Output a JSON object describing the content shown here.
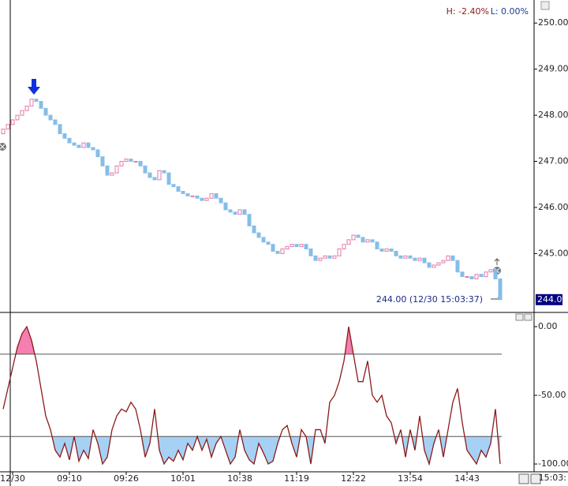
{
  "chart_data": [
    {
      "type": "candlestick",
      "high_label": "H: -2.40%",
      "low_label": "L: 0.00%",
      "categories": [
        null,
        null,
        "12/30",
        null,
        null,
        null,
        null,
        null,
        null,
        null,
        null,
        null,
        null,
        null,
        "09:10",
        null,
        null,
        null,
        null,
        null,
        null,
        null,
        null,
        null,
        null,
        null,
        "09:26",
        null,
        null,
        null,
        null,
        null,
        null,
        null,
        null,
        null,
        null,
        null,
        "10:01",
        null,
        null,
        null,
        null,
        null,
        null,
        null,
        null,
        null,
        null,
        null,
        "10:38",
        null,
        null,
        null,
        null,
        null,
        null,
        null,
        null,
        null,
        null,
        null,
        "11:19",
        null,
        null,
        null,
        null,
        null,
        null,
        null,
        null,
        null,
        null,
        null,
        "12:22",
        null,
        null,
        null,
        null,
        null,
        null,
        null,
        null,
        null,
        null,
        null,
        "13:54",
        null,
        null,
        null,
        null,
        null,
        null,
        null,
        null,
        null,
        null,
        null,
        "14:43",
        null,
        null,
        null,
        null,
        null,
        null,
        null
      ],
      "current_time_label": "15:03:",
      "open": [
        247.6,
        247.7,
        247.8,
        247.9,
        248.0,
        248.1,
        248.2,
        248.35,
        248.3,
        248.15,
        248.0,
        247.9,
        247.8,
        247.6,
        247.5,
        247.4,
        247.35,
        247.3,
        247.4,
        247.3,
        247.25,
        247.1,
        246.9,
        246.7,
        246.75,
        246.9,
        247.0,
        247.05,
        247.0,
        247.0,
        246.9,
        246.75,
        246.65,
        246.6,
        246.8,
        246.75,
        246.5,
        246.45,
        246.35,
        246.3,
        246.25,
        246.25,
        246.2,
        246.15,
        246.2,
        246.3,
        246.2,
        246.1,
        245.95,
        245.9,
        245.85,
        245.95,
        245.85,
        245.6,
        245.45,
        245.35,
        245.25,
        245.2,
        245.05,
        245.0,
        245.1,
        245.15,
        245.2,
        245.15,
        245.2,
        245.1,
        244.95,
        244.85,
        244.9,
        244.95,
        244.9,
        244.95,
        245.1,
        245.2,
        245.3,
        245.4,
        245.35,
        245.25,
        245.3,
        245.25,
        245.1,
        245.05,
        245.1,
        245.05,
        244.95,
        244.9,
        244.95,
        244.9,
        244.85,
        244.9,
        244.8,
        244.7,
        244.75,
        244.8,
        244.85,
        244.95,
        244.85,
        244.6,
        244.5,
        244.5,
        244.45,
        244.55,
        244.5,
        244.6,
        244.65,
        244.45
      ],
      "close": [
        247.7,
        247.8,
        247.9,
        248.0,
        248.1,
        248.2,
        248.35,
        248.3,
        248.15,
        248.0,
        247.9,
        247.8,
        247.6,
        247.5,
        247.4,
        247.35,
        247.3,
        247.4,
        247.3,
        247.25,
        247.1,
        246.9,
        246.7,
        246.75,
        246.9,
        247.0,
        247.05,
        247.0,
        247.0,
        246.9,
        246.75,
        246.65,
        246.6,
        246.8,
        246.75,
        246.5,
        246.45,
        246.35,
        246.3,
        246.25,
        246.25,
        246.2,
        246.15,
        246.2,
        246.3,
        246.2,
        246.1,
        245.95,
        245.9,
        245.85,
        245.95,
        245.85,
        245.6,
        245.45,
        245.35,
        245.25,
        245.2,
        245.05,
        245.0,
        245.1,
        245.15,
        245.2,
        245.15,
        245.2,
        245.1,
        244.95,
        244.85,
        244.9,
        244.95,
        244.9,
        244.95,
        245.1,
        245.2,
        245.3,
        245.4,
        245.35,
        245.25,
        245.3,
        245.25,
        245.1,
        245.05,
        245.1,
        245.05,
        244.95,
        244.9,
        244.95,
        244.9,
        244.85,
        244.9,
        244.8,
        244.7,
        244.75,
        244.8,
        244.85,
        244.95,
        244.85,
        244.6,
        244.5,
        244.5,
        244.45,
        244.55,
        244.5,
        244.6,
        244.65,
        244.45,
        244.0
      ],
      "up_color": "#e27aa8",
      "down_color": "#86bde8",
      "ylim": [
        243.74,
        250.5
      ],
      "yticks": [
        {
          "value": 250,
          "label": "250.00"
        },
        {
          "value": 249,
          "label": "249.00"
        },
        {
          "value": 248,
          "label": "248.00"
        },
        {
          "value": 247,
          "label": "247.00"
        },
        {
          "value": 246,
          "label": "246.00"
        },
        {
          "value": 245,
          "label": "245.00"
        }
      ],
      "last_price": {
        "value": 244,
        "label": "244.00"
      },
      "annotation": "244.00 (12/30 15:03:37)"
    },
    {
      "type": "line",
      "values": [
        -60,
        -45,
        -30,
        -15,
        -5,
        0,
        -10,
        -25,
        -45,
        -65,
        -75,
        -90,
        -95,
        -85,
        -97,
        -80,
        -98,
        -90,
        -96,
        -75,
        -85,
        -100,
        -95,
        -75,
        -65,
        -60,
        -62,
        -55,
        -60,
        -75,
        -95,
        -85,
        -60,
        -90,
        -100,
        -95,
        -98,
        -90,
        -97,
        -85,
        -90,
        -80,
        -90,
        -82,
        -95,
        -85,
        -80,
        -90,
        -100,
        -95,
        -75,
        -90,
        -97,
        -100,
        -85,
        -92,
        -100,
        -98,
        -85,
        -75,
        -72,
        -85,
        -95,
        -75,
        -80,
        -100,
        -75,
        -75,
        -85,
        -55,
        -50,
        -40,
        -25,
        0,
        -20,
        -40,
        -40,
        -25,
        -50,
        -55,
        -50,
        -65,
        -70,
        -85,
        -75,
        -95,
        -75,
        -90,
        -65,
        -90,
        -100,
        -85,
        -75,
        -95,
        -75,
        -55,
        -45,
        -70,
        -90,
        -95,
        -100,
        -90,
        -95,
        -85,
        -60,
        -100
      ],
      "color": "#8b1a1a",
      "levels": [
        -20,
        -80
      ],
      "upper_fill": "#f47fb0",
      "lower_fill": "#a6d1f5",
      "ylim": [
        -105.7,
        9.8
      ],
      "yticks": [
        {
          "value": 0,
          "label": "0.00"
        },
        {
          "value": -50,
          "label": "-50.00"
        },
        {
          "value": -100,
          "label": "-100.00"
        }
      ]
    }
  ]
}
